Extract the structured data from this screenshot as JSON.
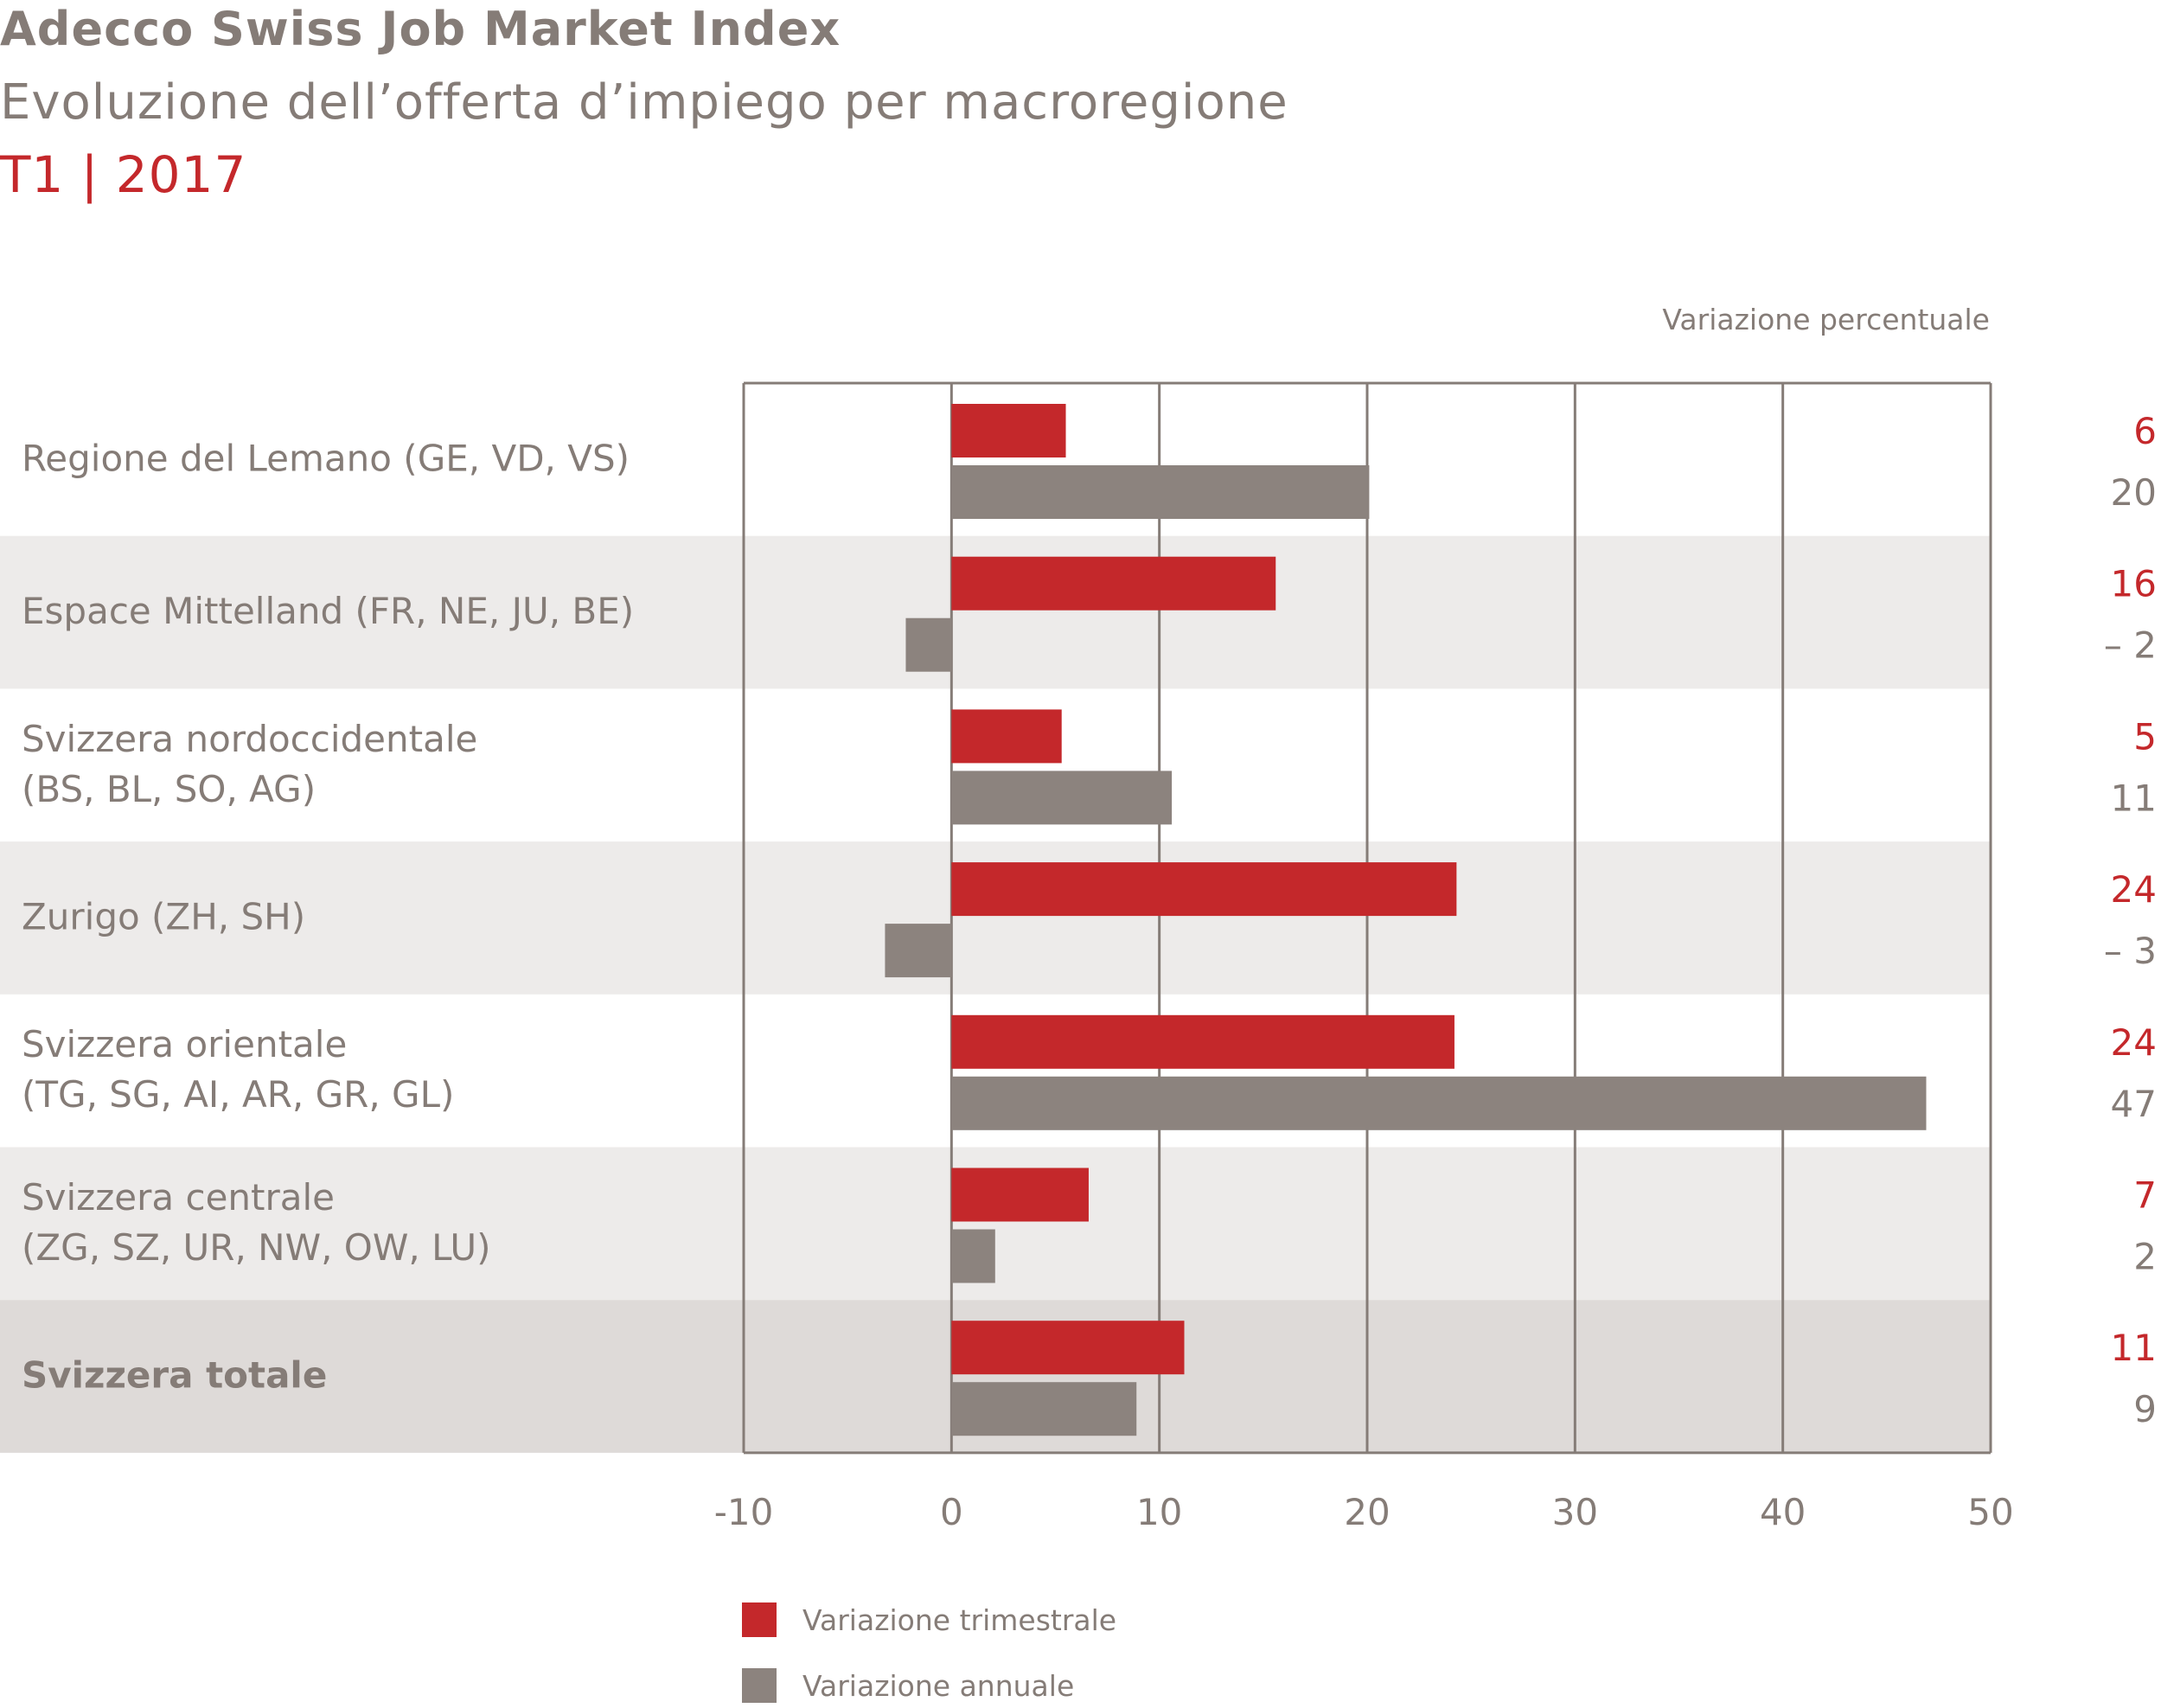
{
  "header": {
    "title": "Adecco Swiss Job Market Index",
    "subtitle": "Evoluzione dell’offerta d’impiego per macroregione",
    "period": "T1 | 2017",
    "unit_label": "Variazione percentuale"
  },
  "colors": {
    "quarterly": "#c4282b",
    "annual": "#8c837e",
    "text": "#857c77",
    "row_band": "#edebea",
    "total_band": "#dedad8",
    "axis": "#857c77"
  },
  "chart_data": {
    "type": "bar",
    "orientation": "horizontal",
    "categories": [
      [
        "Regione del Lemano (GE, VD, VS)"
      ],
      [
        "Espace Mittelland (FR, NE, JU, BE)"
      ],
      [
        "Svizzera nordoccidentale",
        "(BS, BL, SO, AG)"
      ],
      [
        "Zurigo (ZH, SH)"
      ],
      [
        "Svizzera orientale",
        "(TG, SG, AI, AR, GR, GL)"
      ],
      [
        "Svizzera centrale",
        "(ZG, SZ, UR, NW, OW, LU)"
      ],
      [
        "Svizzera totale"
      ]
    ],
    "bold_category_index": 6,
    "series": [
      {
        "name": "Variazione trimestrale",
        "values": [
          5.5,
          15.6,
          5.3,
          24.3,
          24.2,
          6.6,
          11.2
        ],
        "labels": [
          "6",
          "16",
          "5",
          "24",
          "24",
          "7",
          "11"
        ]
      },
      {
        "name": "Variazione annuale",
        "values": [
          20.1,
          -2.2,
          10.6,
          -3.2,
          46.9,
          2.1,
          8.9
        ],
        "labels": [
          "20",
          "– 2",
          "11",
          "– 3",
          "47",
          "2",
          "9"
        ]
      }
    ],
    "xlim": [
      -10,
      50
    ],
    "xticks": [
      -10,
      0,
      10,
      20,
      30,
      40,
      50
    ],
    "grid": true,
    "legend_position": "bottom"
  }
}
